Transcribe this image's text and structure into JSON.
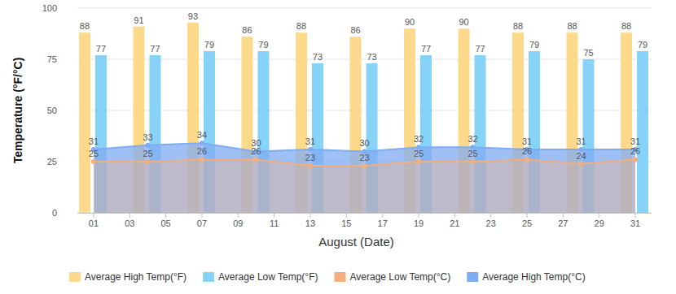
{
  "chart_data": {
    "type": "bar",
    "x_label": "August (Date)",
    "y_label": "Temperature (°F/°C)",
    "x": [
      1,
      4,
      7,
      10,
      13,
      16,
      19,
      22,
      25,
      28,
      31
    ],
    "xlim": [
      0.1,
      31.9
    ],
    "xticks": [
      {
        "value": 1,
        "label": "01"
      },
      {
        "value": 3,
        "label": "03"
      },
      {
        "value": 5,
        "label": "05"
      },
      {
        "value": 7,
        "label": "07"
      },
      {
        "value": 9,
        "label": "09"
      },
      {
        "value": 11,
        "label": "11"
      },
      {
        "value": 13,
        "label": "13"
      },
      {
        "value": 15,
        "label": "15"
      },
      {
        "value": 17,
        "label": "17"
      },
      {
        "value": 19,
        "label": "19"
      },
      {
        "value": 21,
        "label": "21"
      },
      {
        "value": 23,
        "label": "23"
      },
      {
        "value": 25,
        "label": "25"
      },
      {
        "value": 27,
        "label": "27"
      },
      {
        "value": 29,
        "label": "29"
      },
      {
        "value": 31,
        "label": "31"
      }
    ],
    "ylim": [
      0,
      100
    ],
    "yticks": [
      0,
      25,
      50,
      75,
      100
    ],
    "grid": true,
    "legend": "bottom",
    "data_labels": true,
    "series": [
      {
        "name": "Average High Temp(°F)",
        "type": "bar",
        "color": "#fdd98b",
        "values": [
          88,
          91,
          93,
          86,
          88,
          86,
          90,
          90,
          88,
          88,
          88
        ]
      },
      {
        "name": "Average Low Temp(°F)",
        "type": "bar",
        "color": "#87d3f8",
        "values": [
          77,
          77,
          79,
          79,
          73,
          73,
          77,
          77,
          79,
          75,
          79
        ]
      },
      {
        "name": "Average Low Temp(°C)",
        "type": "area",
        "color": "#f4ae7e",
        "marker": "circle",
        "values": [
          25,
          25,
          26,
          26,
          23,
          23,
          25,
          25,
          26,
          24,
          26
        ]
      },
      {
        "name": "Average High Temp(°C)",
        "type": "area",
        "color": "#7fabf2",
        "marker": "circle",
        "values": [
          31,
          33,
          34,
          30,
          31,
          30,
          32,
          32,
          31,
          31,
          31
        ]
      }
    ]
  }
}
